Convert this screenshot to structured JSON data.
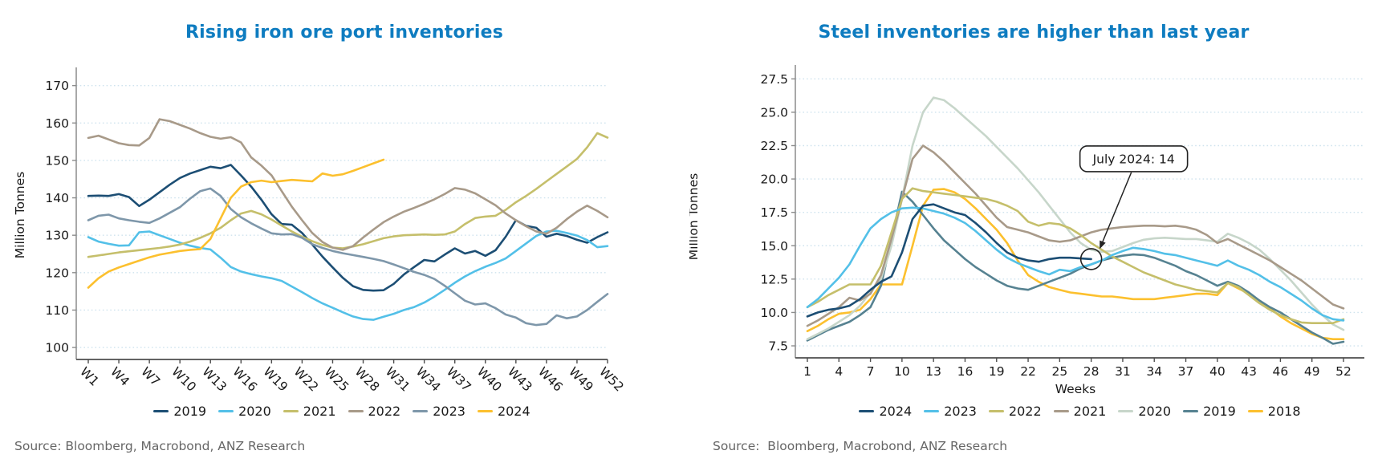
{
  "colors": {
    "title_accent": "#0e7cc0",
    "source_text": "#666666",
    "axis_text": "#1a1a1a",
    "gridline": "#cfe3ee",
    "axis_line": "#8c8c8c",
    "baseline": "#4d4d4d"
  },
  "chart_data": [
    {
      "type": "line",
      "title": "Rising iron ore port inventories",
      "ylabel": "Million Tonnes",
      "xlabel": null,
      "source": "Source: Bloomberg, Macrobond, ANZ Research",
      "grid": true,
      "legend_position": "bottom",
      "x_domain": [
        1,
        52
      ],
      "y_domain": [
        96.8,
        174
      ],
      "x_tick_weeks": [
        1,
        4,
        7,
        10,
        13,
        16,
        19,
        22,
        25,
        28,
        31,
        34,
        37,
        40,
        43,
        46,
        49,
        52
      ],
      "x_ticks": [
        "W1",
        "W4",
        "W7",
        "W10",
        "W13",
        "W16",
        "W19",
        "W22",
        "W25",
        "W28",
        "W31",
        "W34",
        "W37",
        "W40",
        "W43",
        "W46",
        "W49",
        "W52"
      ],
      "y_tick_values": [
        100,
        110,
        120,
        130,
        140,
        150,
        160,
        170
      ],
      "y_ticks": [
        "100",
        "110",
        "120",
        "130",
        "140",
        "150",
        "160",
        "170"
      ],
      "series": [
        {
          "name": "2019",
          "color": "#1c4e74",
          "start_week": 1,
          "values": [
            140.5,
            140.6,
            140.5,
            141,
            140.2,
            137.8,
            139.5,
            141.5,
            143.5,
            145.3,
            146.5,
            147.4,
            148.3,
            147.9,
            148.8,
            146,
            143,
            139.5,
            135.6,
            133,
            132.8,
            130.6,
            127.5,
            124.3,
            121.4,
            118.6,
            116.4,
            115.4,
            115.2,
            115.3,
            117,
            119.5,
            121.5,
            123.4,
            123,
            124.8,
            126.5,
            125.1,
            125.8,
            124.5,
            126,
            129.6,
            134,
            132.5,
            132,
            129.6,
            130.4,
            129.8,
            128.8,
            128,
            129.5,
            130.8
          ]
        },
        {
          "name": "2020",
          "color": "#53c0e8",
          "start_week": 1,
          "values": [
            129.5,
            128.3,
            127.7,
            127.2,
            127.3,
            130.8,
            131,
            130,
            129,
            128,
            127.2,
            126.6,
            126.2,
            124,
            121.5,
            120.3,
            119.6,
            119,
            118.5,
            117.8,
            116.3,
            114.8,
            113.2,
            111.8,
            110.6,
            109.4,
            108.3,
            107.6,
            107.4,
            108.2,
            109,
            110,
            110.8,
            112,
            113.6,
            115.4,
            117.3,
            119,
            120.4,
            121.6,
            122.6,
            123.8,
            125.8,
            127.8,
            129.8,
            131,
            131.2,
            130.6,
            129.9,
            128.7,
            126.8,
            127.1
          ]
        },
        {
          "name": "2021",
          "color": "#c5bf6b",
          "start_week": 1,
          "values": [
            124.2,
            124.6,
            125,
            125.4,
            125.7,
            126,
            126.3,
            126.6,
            127,
            127.5,
            128.3,
            129.3,
            130.5,
            132,
            134,
            135.8,
            136.5,
            135.6,
            134.2,
            132.6,
            131,
            129.6,
            128.4,
            127.4,
            126.7,
            126.5,
            127,
            127.6,
            128.4,
            129.2,
            129.7,
            130,
            130.1,
            130.2,
            130.1,
            130.2,
            131,
            133,
            134.6,
            135,
            135.2,
            136.8,
            138.8,
            140.5,
            142.4,
            144.4,
            146.4,
            148.4,
            150.4,
            153.5,
            157.3,
            156.1
          ]
        },
        {
          "name": "2022",
          "color": "#a89a89",
          "start_week": 1,
          "values": [
            156,
            156.6,
            155.6,
            154.6,
            154.1,
            154,
            156,
            161,
            160.5,
            159.5,
            158.5,
            157.3,
            156.3,
            155.8,
            156.2,
            154.8,
            150.8,
            148.6,
            146,
            141.8,
            137.6,
            134,
            130.6,
            128.2,
            126.7,
            126.1,
            127.1,
            129.4,
            131.5,
            133.5,
            135,
            136.3,
            137.3,
            138.4,
            139.6,
            141,
            142.6,
            142.2,
            141.2,
            139.6,
            138,
            135.8,
            134,
            132.4,
            131,
            130.4,
            132,
            134.3,
            136.3,
            137.9,
            136.5,
            134.8
          ]
        },
        {
          "name": "2023",
          "color": "#7e97aa",
          "start_week": 1,
          "values": [
            134,
            135.2,
            135.5,
            134.5,
            134,
            133.6,
            133.3,
            134.5,
            136,
            137.5,
            139.8,
            141.8,
            142.5,
            140.5,
            137,
            134.8,
            133.2,
            131.8,
            130.5,
            130.2,
            130.3,
            129.3,
            127.6,
            126.6,
            125.8,
            125.2,
            124.7,
            124.2,
            123.7,
            123.1,
            122.2,
            121.2,
            120.2,
            119.4,
            118.3,
            116.5,
            114.5,
            112.5,
            111.5,
            111.8,
            110.5,
            108.8,
            108,
            106.5,
            106,
            106.3,
            108.6,
            107.8,
            108.3,
            110,
            112.2,
            114.3
          ]
        },
        {
          "name": "2024",
          "color": "#fcc02e",
          "start_week": 1,
          "values": [
            116,
            118.5,
            120.3,
            121.4,
            122.3,
            123.2,
            124.1,
            124.8,
            125.3,
            125.8,
            126.1,
            126.3,
            129,
            134.5,
            140,
            143,
            144.2,
            144.6,
            144.2,
            144.5,
            144.8,
            144.6,
            144.4,
            146.5,
            145.9,
            146.3,
            147.2,
            148.2,
            149.2,
            150.2
          ]
        }
      ]
    },
    {
      "type": "line",
      "title": "Steel inventories are higher than last year",
      "ylabel": "Million Tonnes",
      "xlabel": "Weeks",
      "source": "Source:  Bloomberg, Macrobond, ANZ Research",
      "grid": true,
      "legend_position": "bottom",
      "draw_order": "reversed",
      "x_domain": [
        1,
        52
      ],
      "y_domain": [
        6.6,
        28.3
      ],
      "x_tick_weeks": [
        1,
        4,
        7,
        10,
        13,
        16,
        19,
        22,
        25,
        28,
        31,
        34,
        37,
        40,
        43,
        46,
        49,
        52
      ],
      "x_ticks": [
        "1",
        "4",
        "7",
        "10",
        "13",
        "16",
        "19",
        "22",
        "25",
        "28",
        "31",
        "34",
        "37",
        "40",
        "43",
        "46",
        "49",
        "52"
      ],
      "y_tick_values": [
        7.5,
        10.0,
        12.5,
        15.0,
        17.5,
        20.0,
        22.5,
        25.0,
        27.5
      ],
      "y_ticks": [
        "7.5",
        "10.0",
        "12.5",
        "15.0",
        "17.5",
        "20.0",
        "22.5",
        "25.0",
        "27.5"
      ],
      "annotation": {
        "text": "July 2024: 14",
        "week": 28,
        "value": 14
      },
      "series": [
        {
          "name": "2024",
          "color": "#1c4e74",
          "start_week": 1,
          "values": [
            9.7,
            10,
            10.2,
            10.3,
            10.5,
            11,
            11.7,
            12.3,
            12.7,
            14.5,
            17,
            18,
            18.1,
            17.8,
            17.5,
            17.3,
            16.7,
            16,
            15.2,
            14.5,
            14.1,
            13.9,
            13.8,
            14,
            14.1,
            14.1,
            14.05,
            14
          ]
        },
        {
          "name": "2023",
          "color": "#53c0e8",
          "start_week": 1,
          "values": [
            10.4,
            11,
            11.8,
            12.6,
            13.6,
            15,
            16.3,
            17,
            17.5,
            17.8,
            17.85,
            17.8,
            17.6,
            17.4,
            17.1,
            16.7,
            16.1,
            15.4,
            14.7,
            14.1,
            13.7,
            13.4,
            13.1,
            12.85,
            13.2,
            13.1,
            13.4,
            13.6,
            13.9,
            14.3,
            14.6,
            14.85,
            14.75,
            14.6,
            14.4,
            14.3,
            14.1,
            13.9,
            13.7,
            13.5,
            13.9,
            13.5,
            13.2,
            12.8,
            12.3,
            11.9,
            11.4,
            10.9,
            10.3,
            9.8,
            9.5,
            9.4
          ]
        },
        {
          "name": "2022",
          "color": "#c5bf6b",
          "start_week": 1,
          "values": [
            10.4,
            10.8,
            11.3,
            11.7,
            12.1,
            12.1,
            12.1,
            13.5,
            16,
            18.5,
            19.3,
            19.1,
            19,
            18.9,
            18.8,
            18.7,
            18.6,
            18.5,
            18.3,
            18,
            17.6,
            16.8,
            16.5,
            16.7,
            16.6,
            16.3,
            15.8,
            15.2,
            14.7,
            14.2,
            13.8,
            13.4,
            13,
            12.7,
            12.4,
            12.1,
            11.9,
            11.7,
            11.6,
            11.5,
            12.2,
            11.9,
            11.3,
            10.7,
            10.2,
            9.8,
            9.5,
            9.25,
            9.2,
            9.2,
            9.2,
            9.5
          ]
        },
        {
          "name": "2021",
          "color": "#a89a89",
          "start_week": 1,
          "values": [
            9,
            9.4,
            9.9,
            10.4,
            11.1,
            10.9,
            11.4,
            12.8,
            15.5,
            18.5,
            21.5,
            22.5,
            22,
            21.3,
            20.5,
            19.7,
            18.9,
            18,
            17.1,
            16.4,
            16.2,
            16,
            15.7,
            15.4,
            15.3,
            15.4,
            15.7,
            16,
            16.2,
            16.3,
            16.4,
            16.45,
            16.5,
            16.5,
            16.45,
            16.5,
            16.4,
            16.2,
            15.8,
            15.2,
            15.5,
            15.1,
            14.7,
            14.3,
            13.9,
            13.4,
            12.9,
            12.4,
            11.8,
            11.2,
            10.6,
            10.3
          ]
        },
        {
          "name": "2020",
          "color": "#c7d6ca",
          "start_week": 1,
          "values": [
            8,
            8.4,
            8.8,
            9.3,
            9.8,
            10.5,
            11.5,
            12.5,
            15,
            18.5,
            22.5,
            25,
            26.1,
            25.9,
            25.3,
            24.6,
            23.9,
            23.2,
            22.4,
            21.6,
            20.8,
            19.9,
            19,
            18,
            17,
            16,
            15.2,
            14.7,
            14.55,
            14.6,
            14.9,
            15.2,
            15.45,
            15.55,
            15.6,
            15.55,
            15.5,
            15.5,
            15.4,
            15.3,
            15.9,
            15.6,
            15.2,
            14.7,
            14,
            13.2,
            12.4,
            11.5,
            10.6,
            9.8,
            9.1,
            8.7
          ]
        },
        {
          "name": "2019",
          "color": "#568291",
          "start_week": 1,
          "values": [
            7.9,
            8.3,
            8.7,
            9,
            9.3,
            9.8,
            10.4,
            12,
            15.5,
            19.05,
            18.3,
            17.3,
            16.3,
            15.4,
            14.7,
            14,
            13.4,
            12.9,
            12.4,
            12,
            11.8,
            11.7,
            12,
            12.3,
            12.6,
            12.9,
            13.3,
            13.6,
            13.9,
            14.1,
            14.25,
            14.35,
            14.3,
            14.1,
            13.8,
            13.5,
            13.1,
            12.8,
            12.4,
            12,
            12.3,
            12,
            11.5,
            10.9,
            10.4,
            10,
            9.5,
            9,
            8.5,
            8.1,
            7.65,
            7.8
          ]
        },
        {
          "name": "2018",
          "color": "#fcc02e",
          "start_week": 1,
          "values": [
            8.6,
            9,
            9.5,
            9.9,
            10,
            10.2,
            11,
            12.1,
            12.1,
            12.1,
            15,
            18,
            19.2,
            19.25,
            19,
            18.5,
            17.8,
            17,
            16.2,
            15.2,
            13.9,
            12.8,
            12.3,
            11.9,
            11.7,
            11.5,
            11.4,
            11.3,
            11.2,
            11.2,
            11.1,
            11,
            11,
            11,
            11.1,
            11.2,
            11.3,
            11.4,
            11.4,
            11.3,
            12.2,
            11.8,
            11.4,
            10.9,
            10.3,
            9.7,
            9.2,
            8.8,
            8.4,
            8.1,
            8,
            8
          ]
        }
      ]
    }
  ]
}
